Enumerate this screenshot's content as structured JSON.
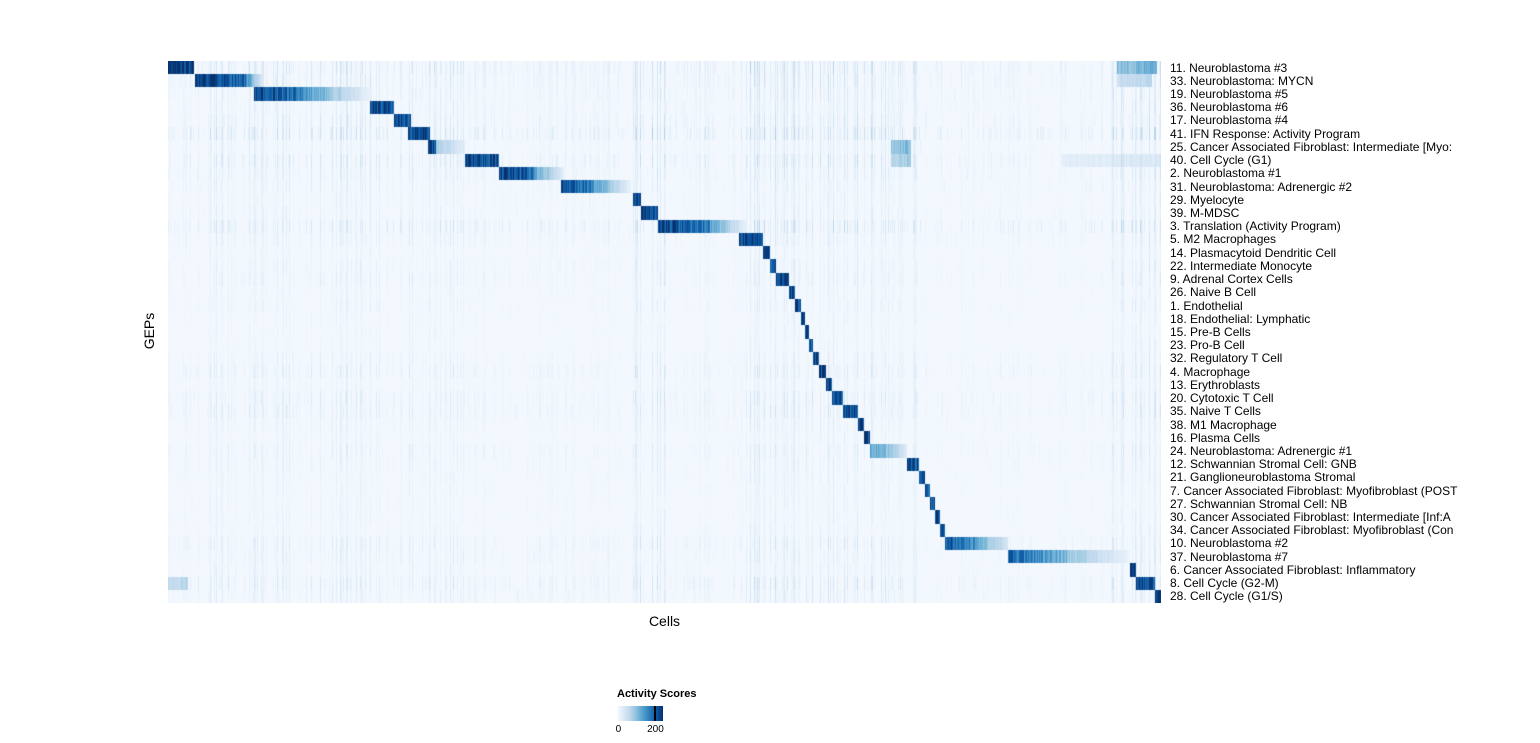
{
  "chart_data": {
    "type": "heatmap",
    "title": "",
    "xlabel": "Cells",
    "ylabel": "GEPs",
    "legend": {
      "title": "Activity Scores",
      "min_label": "0",
      "max_label": "200",
      "min_value": 0,
      "max_value": 200,
      "colormap": "Blues",
      "stops": [
        "#f7fbff",
        "#deebf7",
        "#c6dbef",
        "#9ecae1",
        "#6baed6",
        "#4292c6",
        "#2171b5",
        "#08519c",
        "#08306b"
      ],
      "position": "bottom-center"
    },
    "layout": {
      "n_rows": 41,
      "grid": false,
      "structure": "block-diagonal: cells (x) sorted by their maximally active GEP (y); segment values are fractions of max activity score 200"
    },
    "rows": [
      {
        "label": "11. Neuroblastoma #3",
        "segments": [
          [
            0.0,
            0.026,
            1.0,
            0.9
          ],
          [
            0.955,
            0.995,
            0.4,
            0.5
          ]
        ],
        "noise": 0.26
      },
      {
        "label": "33. Neuroblastoma: MYCN",
        "segments": [
          [
            0.027,
            0.078,
            0.97,
            0.8
          ],
          [
            0.078,
            0.095,
            0.6,
            0.15
          ],
          [
            0.955,
            0.99,
            0.22,
            0.28
          ]
        ],
        "noise": 0.22
      },
      {
        "label": "19. Neuroblastoma #5",
        "segments": [
          [
            0.086,
            0.135,
            0.95,
            0.7
          ],
          [
            0.135,
            0.205,
            0.6,
            0.06
          ]
        ],
        "noise": 0.18
      },
      {
        "label": "36. Neuroblastoma #6",
        "segments": [
          [
            0.203,
            0.227,
            0.95,
            0.85
          ]
        ],
        "noise": 0.16
      },
      {
        "label": "17. Neuroblastoma #4",
        "segments": [
          [
            0.227,
            0.244,
            0.95,
            0.85
          ]
        ],
        "noise": 0.2
      },
      {
        "label": "41. IFN Response: Activity Program",
        "segments": [
          [
            0.241,
            0.263,
            0.92,
            0.85
          ]
        ],
        "noise": 0.3
      },
      {
        "label": "25. Cancer Associated Fibroblast: Intermediate [Myo:",
        "segments": [
          [
            0.261,
            0.269,
            0.95,
            0.9
          ],
          [
            0.269,
            0.299,
            0.35,
            0.1
          ],
          [
            0.728,
            0.748,
            0.4,
            0.45
          ]
        ],
        "noise": 0.14
      },
      {
        "label": "40. Cell Cycle (G1)",
        "segments": [
          [
            0.299,
            0.333,
            0.95,
            0.85
          ],
          [
            0.728,
            0.748,
            0.3,
            0.35
          ],
          [
            0.9,
            0.998,
            0.1,
            0.14
          ]
        ],
        "noise": 0.24
      },
      {
        "label": "2. Neuroblastoma #1",
        "segments": [
          [
            0.333,
            0.368,
            0.93,
            0.8
          ],
          [
            0.368,
            0.398,
            0.55,
            0.12
          ]
        ],
        "noise": 0.18
      },
      {
        "label": "31. Neuroblastoma: Adrenergic #2",
        "segments": [
          [
            0.395,
            0.428,
            0.92,
            0.7
          ],
          [
            0.428,
            0.466,
            0.6,
            0.07
          ]
        ],
        "noise": 0.15
      },
      {
        "label": "29. Myelocyte",
        "segments": [
          [
            0.468,
            0.476,
            0.92,
            0.88
          ]
        ],
        "noise": 0.12
      },
      {
        "label": "39. M-MDSC",
        "segments": [
          [
            0.476,
            0.493,
            0.95,
            0.85
          ]
        ],
        "noise": 0.14
      },
      {
        "label": "3. Translation (Activity Program)",
        "segments": [
          [
            0.493,
            0.545,
            0.95,
            0.7
          ],
          [
            0.545,
            0.582,
            0.55,
            0.08
          ]
        ],
        "noise": 0.26
      },
      {
        "label": "5. M2 Macrophages",
        "segments": [
          [
            0.575,
            0.599,
            0.95,
            0.85
          ]
        ],
        "noise": 0.15
      },
      {
        "label": "14. Plasmacytoid Dendritic Cell",
        "segments": [
          [
            0.599,
            0.606,
            0.95,
            0.9
          ]
        ],
        "noise": 0.1
      },
      {
        "label": "22. Intermediate Monocyte",
        "segments": [
          [
            0.606,
            0.612,
            0.92,
            0.88
          ]
        ],
        "noise": 0.13
      },
      {
        "label": "9. Adrenal Cortex Cells",
        "segments": [
          [
            0.612,
            0.625,
            0.93,
            0.85
          ]
        ],
        "noise": 0.15
      },
      {
        "label": "26. Naive B Cell",
        "segments": [
          [
            0.625,
            0.631,
            0.93,
            0.88
          ]
        ],
        "noise": 0.1
      },
      {
        "label": "1. Endothelial",
        "segments": [
          [
            0.631,
            0.637,
            0.93,
            0.88
          ]
        ],
        "noise": 0.12
      },
      {
        "label": "18. Endothelial: Lymphatic",
        "segments": [
          [
            0.637,
            0.641,
            0.92,
            0.88
          ]
        ],
        "noise": 0.09
      },
      {
        "label": "15. Pre-B Cells",
        "segments": [
          [
            0.641,
            0.645,
            0.92,
            0.88
          ]
        ],
        "noise": 0.09
      },
      {
        "label": "23. Pro-B Cell",
        "segments": [
          [
            0.645,
            0.649,
            0.92,
            0.88
          ]
        ],
        "noise": 0.09
      },
      {
        "label": "32. Regulatory T Cell",
        "segments": [
          [
            0.649,
            0.655,
            0.92,
            0.86
          ]
        ],
        "noise": 0.13
      },
      {
        "label": "4. Macrophage",
        "segments": [
          [
            0.655,
            0.662,
            0.92,
            0.86
          ]
        ],
        "noise": 0.18
      },
      {
        "label": "13. Erythroblasts",
        "segments": [
          [
            0.662,
            0.668,
            0.92,
            0.86
          ]
        ],
        "noise": 0.11
      },
      {
        "label": "20. Cytotoxic T Cell",
        "segments": [
          [
            0.668,
            0.679,
            0.93,
            0.82
          ]
        ],
        "noise": 0.18
      },
      {
        "label": "35. Naive T Cells",
        "segments": [
          [
            0.679,
            0.694,
            0.95,
            0.85
          ]
        ],
        "noise": 0.18
      },
      {
        "label": "38. M1 Macrophage",
        "segments": [
          [
            0.694,
            0.7,
            0.92,
            0.86
          ]
        ],
        "noise": 0.12
      },
      {
        "label": "16. Plasma Cells",
        "segments": [
          [
            0.7,
            0.706,
            0.92,
            0.86
          ]
        ],
        "noise": 0.1
      },
      {
        "label": "24. Neuroblastoma: Adrenergic #1",
        "segments": [
          [
            0.706,
            0.73,
            0.55,
            0.38
          ],
          [
            0.73,
            0.744,
            0.33,
            0.12
          ]
        ],
        "noise": 0.15
      },
      {
        "label": "12. Schwannian Stromal Cell: GNB",
        "segments": [
          [
            0.744,
            0.756,
            0.92,
            0.82
          ]
        ],
        "noise": 0.13
      },
      {
        "label": "21. Ganglioneuroblastoma Stromal",
        "segments": [
          [
            0.756,
            0.762,
            0.92,
            0.86
          ]
        ],
        "noise": 0.11
      },
      {
        "label": "7. Cancer Associated Fibroblast: Myofibroblast (POST",
        "segments": [
          [
            0.762,
            0.767,
            0.92,
            0.87
          ]
        ],
        "noise": 0.1
      },
      {
        "label": "27. Schwannian Stromal Cell: NB",
        "segments": [
          [
            0.767,
            0.772,
            0.92,
            0.87
          ]
        ],
        "noise": 0.1
      },
      {
        "label": "30. Cancer Associated Fibroblast: Intermediate [Inf:A",
        "segments": [
          [
            0.772,
            0.777,
            0.92,
            0.87
          ]
        ],
        "noise": 0.1
      },
      {
        "label": "34. Cancer Associated Fibroblast: Myofibroblast (Con",
        "segments": [
          [
            0.777,
            0.782,
            0.92,
            0.87
          ]
        ],
        "noise": 0.1
      },
      {
        "label": "10. Neuroblastoma #2",
        "segments": [
          [
            0.782,
            0.815,
            0.88,
            0.6
          ],
          [
            0.815,
            0.845,
            0.5,
            0.18
          ]
        ],
        "noise": 0.18
      },
      {
        "label": "37. Neuroblastoma #7",
        "segments": [
          [
            0.845,
            0.905,
            0.82,
            0.45
          ],
          [
            0.905,
            0.968,
            0.4,
            0.06
          ]
        ],
        "noise": 0.15
      },
      {
        "label": "6. Cancer Associated Fibroblast: Inflammatory",
        "segments": [
          [
            0.968,
            0.974,
            0.92,
            0.87
          ]
        ],
        "noise": 0.13
      },
      {
        "label": "8. Cell Cycle (G2-M)",
        "segments": [
          [
            0.0,
            0.02,
            0.25,
            0.3
          ],
          [
            0.974,
            0.993,
            0.96,
            0.86
          ]
        ],
        "noise": 0.22
      },
      {
        "label": "28. Cell Cycle (G1/S)",
        "segments": [
          [
            0.993,
            1.0,
            0.95,
            0.9
          ]
        ],
        "noise": 0.16
      }
    ]
  }
}
